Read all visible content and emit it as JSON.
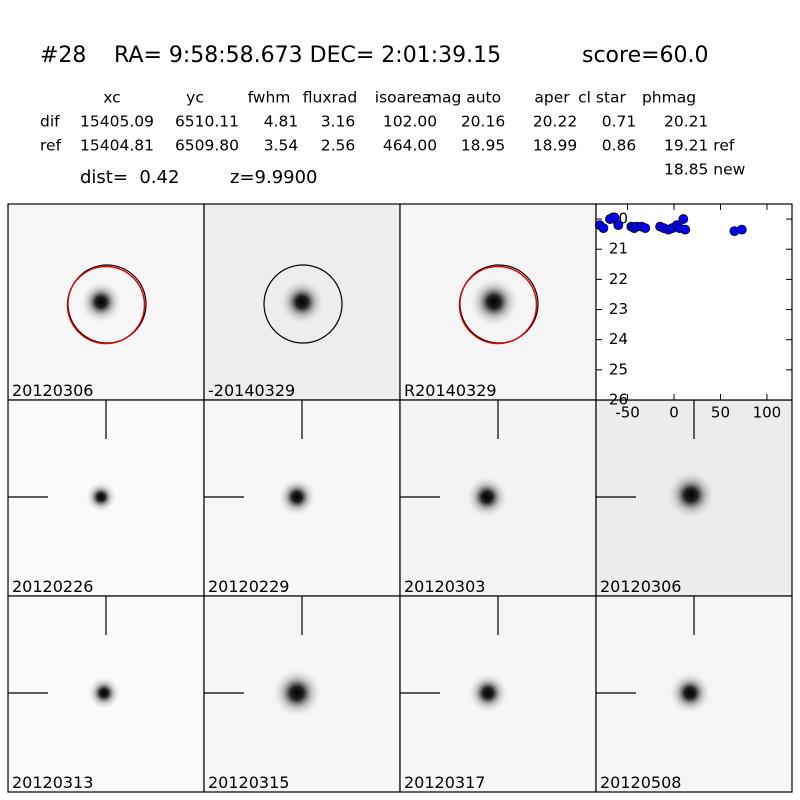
{
  "header": {
    "id": "#28",
    "coords": "RA= 9:58:58.673 DEC= 2:01:39.15",
    "score": "score=60.0"
  },
  "table": {
    "columns": [
      "xc",
      "yc",
      "fwhm",
      "fluxrad",
      "isoarea",
      "mag auto",
      "aper",
      "cl star",
      "phmag"
    ],
    "rows": [
      [
        "dif",
        "15405.09",
        "6510.11",
        "4.81",
        "3.16",
        "102.00",
        "20.16",
        "20.22",
        "0.71",
        "20.21"
      ],
      [
        "ref",
        "15404.81",
        "6509.80",
        "3.54",
        "2.56",
        "464.00",
        "18.95",
        "18.99",
        "0.86",
        "19.21 ref"
      ]
    ],
    "extra": "18.85 new"
  },
  "dist": "dist=  0.42",
  "z": "z=9.9900",
  "panels": [
    {
      "label": "20120306"
    },
    {
      "label": "-20140329"
    },
    {
      "label": "R20140329"
    },
    {
      "label": "20120226"
    },
    {
      "label": "20120229"
    },
    {
      "label": "20120303"
    },
    {
      "label": "20120306",
      "label_color": "#ff0000"
    },
    {
      "label": "20120313"
    },
    {
      "label": "20120315"
    },
    {
      "label": "20120317"
    },
    {
      "label": "20120508"
    }
  ],
  "chart_data": {
    "type": "scatter",
    "color": "#0000ff",
    "x": [
      -80,
      -76,
      -69,
      -64,
      -60,
      -46,
      -43,
      -40,
      -35,
      -31,
      -15,
      -11,
      -6,
      -2,
      3,
      6,
      10,
      12,
      65,
      73
    ],
    "values": [
      20.2,
      20.3,
      20.0,
      19.95,
      20.2,
      20.25,
      20.3,
      20.25,
      20.25,
      20.3,
      20.25,
      20.3,
      20.35,
      20.3,
      20.2,
      20.3,
      20.0,
      20.35,
      20.4,
      20.35
    ],
    "xlim": [
      -84,
      127
    ],
    "xticks": [
      -50,
      0,
      50,
      100
    ],
    "ylim": [
      26,
      19.5
    ],
    "yticks": [
      20,
      21,
      22,
      23,
      24,
      25,
      26
    ]
  }
}
